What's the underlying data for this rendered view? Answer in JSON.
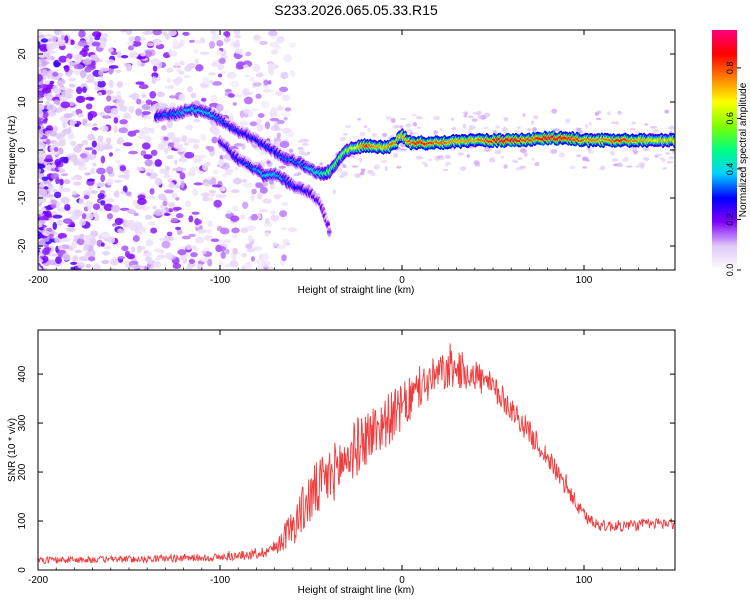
{
  "title": "S233.2026.065.05.33.R15",
  "chart_data": [
    {
      "type": "heatmap",
      "name": "spectrogram",
      "xlabel": "Height of straight line (km)",
      "ylabel": "Frequency (Hz)",
      "xlim": [
        -200,
        150
      ],
      "ylim": [
        -25,
        25
      ],
      "xticks": [
        -200,
        -100,
        0,
        100
      ],
      "yticks": [
        -20,
        -10,
        0,
        10,
        20
      ],
      "colorbar": {
        "label": "Normalized spectral amplitude",
        "range": [
          0,
          0.95
        ],
        "ticks": [
          0.0,
          0.2,
          0.4,
          0.6,
          0.8
        ],
        "tick_labels": [
          "0.0",
          "0.2",
          "0.4",
          "0.6",
          "0.8"
        ],
        "colors": [
          "#ffffff",
          "#e0c8f8",
          "#8000ff",
          "#0000ff",
          "#00d0ff",
          "#00ff80",
          "#80ff00",
          "#ffff00",
          "#ff8000",
          "#ff0000",
          "#ff0080"
        ]
      },
      "ridge": {
        "x": [
          -135,
          -125,
          -115,
          -105,
          -95,
          -85,
          -75,
          -65,
          -55,
          -50,
          -45,
          -40,
          -35,
          -30,
          -25,
          -20,
          -15,
          -10,
          -5,
          0,
          5,
          10,
          20,
          30,
          40,
          50,
          60,
          70,
          80,
          90,
          100,
          110,
          120,
          130,
          140,
          150
        ],
        "y": [
          7.0,
          7.5,
          8.5,
          7.5,
          5.0,
          3.0,
          1.0,
          -1.5,
          -3.0,
          -4.0,
          -5.0,
          -4.5,
          -2.0,
          0.0,
          0.5,
          1.0,
          0.8,
          0.5,
          1.0,
          3.0,
          1.5,
          1.5,
          1.5,
          1.8,
          2.0,
          2.0,
          2.0,
          2.2,
          2.5,
          2.5,
          2.0,
          2.0,
          2.0,
          2.0,
          2.0,
          2.0
        ],
        "amplitude": [
          0.3,
          0.35,
          0.4,
          0.38,
          0.3,
          0.28,
          0.3,
          0.33,
          0.35,
          0.4,
          0.45,
          0.55,
          0.55,
          0.6,
          0.65,
          0.85,
          0.75,
          0.7,
          0.8,
          0.7,
          0.8,
          0.85,
          0.8,
          0.75,
          0.75,
          0.85,
          0.9,
          0.8,
          0.9,
          0.85,
          0.8,
          0.75,
          0.85,
          0.75,
          0.7,
          0.7
        ]
      },
      "branch": {
        "x": [
          -100,
          -90,
          -80,
          -75,
          -70,
          -65,
          -60,
          -55,
          -50,
          -45,
          -42,
          -40
        ],
        "y": [
          2.0,
          -2.0,
          -4.0,
          -5.5,
          -5.0,
          -6.0,
          -7.5,
          -8.0,
          -9.0,
          -11.0,
          -14.0,
          -17.0
        ],
        "amplitude": [
          0.25,
          0.3,
          0.35,
          0.4,
          0.38,
          0.35,
          0.3,
          0.28,
          0.25,
          0.22,
          0.2,
          0.18
        ]
      }
    },
    {
      "type": "line",
      "name": "snr",
      "xlabel": "Height of straight line (km)",
      "ylabel": "SNR (10 * v/v)",
      "xlim": [
        -200,
        150
      ],
      "ylim": [
        0,
        490
      ],
      "xticks": [
        -200,
        -100,
        0,
        100
      ],
      "yticks": [
        0,
        100,
        200,
        300,
        400
      ],
      "color": "#f03c3c",
      "envelope": {
        "x": [
          -200,
          -150,
          -100,
          -80,
          -70,
          -60,
          -50,
          -40,
          -30,
          -20,
          -10,
          0,
          10,
          20,
          30,
          40,
          50,
          60,
          70,
          80,
          90,
          100,
          110,
          120,
          130,
          140,
          150
        ],
        "mean": [
          20,
          22,
          26,
          32,
          45,
          90,
          150,
          190,
          230,
          270,
          300,
          330,
          370,
          400,
          410,
          400,
          370,
          330,
          280,
          230,
          170,
          110,
          90,
          90,
          92,
          95,
          95
        ],
        "noise": [
          7,
          7,
          8,
          10,
          15,
          40,
          60,
          60,
          60,
          60,
          55,
          50,
          45,
          40,
          40,
          35,
          30,
          25,
          25,
          22,
          20,
          15,
          12,
          12,
          12,
          12,
          12
        ]
      }
    }
  ]
}
